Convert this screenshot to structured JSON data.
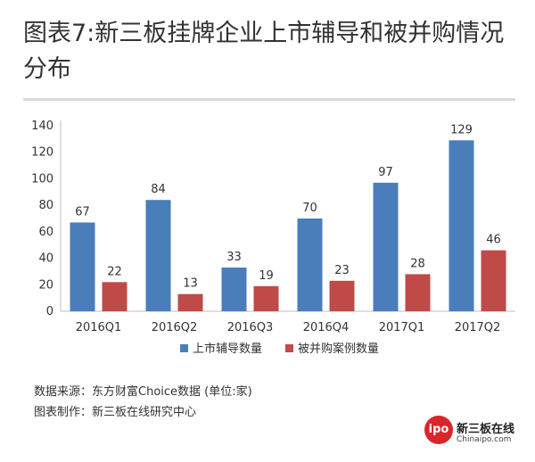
{
  "title": "图表7:新三板挂牌企业上市辅导和被并购情况分布",
  "chart_data": {
    "type": "bar",
    "categories": [
      "2016Q1",
      "2016Q2",
      "2016Q3",
      "2016Q4",
      "2017Q1",
      "2017Q2"
    ],
    "series": [
      {
        "name": "上市辅导数量",
        "values": [
          67,
          84,
          33,
          70,
          97,
          129
        ],
        "color": "#4a7ebb"
      },
      {
        "name": "被并购案例数量",
        "values": [
          22,
          13,
          19,
          23,
          28,
          46
        ],
        "color": "#be4b48"
      }
    ],
    "y_ticks": [
      0,
      20,
      40,
      60,
      80,
      100,
      120,
      140
    ],
    "ylim": [
      0,
      140
    ],
    "legend_position": "bottom-center",
    "grid": false,
    "data_labels": true
  },
  "footer": {
    "source": "数据来源：东方财富Choice数据 (单位:家)",
    "producer": "图表制作：新三板在线研究中心"
  },
  "logo": {
    "badge_text": "ipo",
    "name": "新三板在线",
    "url_text": "Chinaipo.com"
  }
}
